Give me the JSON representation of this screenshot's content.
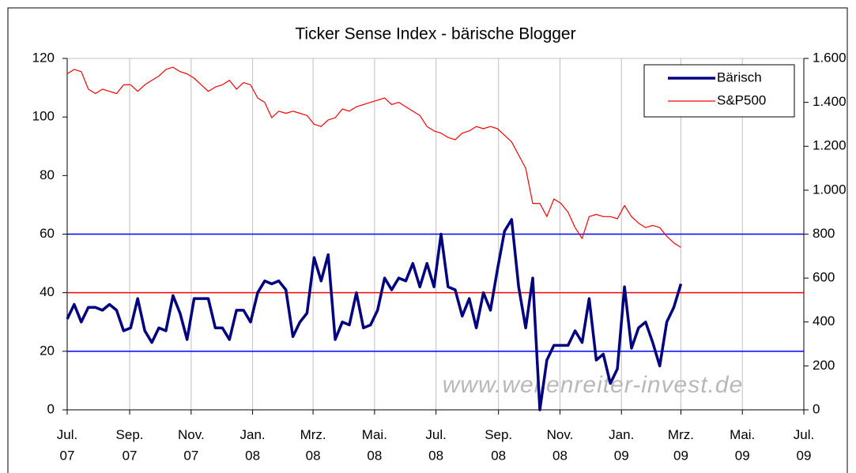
{
  "chart_data": {
    "type": "line",
    "title": "Ticker Sense Index - bärische Blogger",
    "watermark": "www.wellenreiter-invest.de",
    "x": [
      0,
      7,
      14,
      21,
      28,
      35,
      42,
      49,
      56,
      63,
      70,
      77,
      84,
      91,
      98,
      105,
      112,
      119,
      126,
      133,
      140,
      147,
      154,
      161,
      168,
      175,
      182,
      189,
      196,
      203,
      210,
      217,
      224,
      231,
      238,
      245,
      252,
      259,
      266,
      273,
      280,
      287,
      294,
      301,
      308,
      315,
      322,
      329,
      336,
      343,
      350,
      357,
      364,
      371,
      378,
      385,
      392,
      399,
      406,
      413,
      420,
      427,
      434,
      441,
      448,
      455,
      462,
      469,
      476,
      483,
      490,
      497,
      504,
      511,
      518,
      525,
      532,
      539,
      546,
      553,
      560,
      567,
      574,
      581,
      588,
      595,
      602,
      609
    ],
    "xlim": [
      0,
      731
    ],
    "xticks": [
      {
        "value": 0,
        "label": "Jul. 07"
      },
      {
        "value": 62,
        "label": "Sep. 07"
      },
      {
        "value": 123,
        "label": "Nov. 07"
      },
      {
        "value": 184,
        "label": "Jan. 08"
      },
      {
        "value": 244,
        "label": "Mrz. 08"
      },
      {
        "value": 305,
        "label": "Mai. 08"
      },
      {
        "value": 366,
        "label": "Jul. 08"
      },
      {
        "value": 428,
        "label": "Sep. 08"
      },
      {
        "value": 489,
        "label": "Nov. 08"
      },
      {
        "value": 550,
        "label": "Jan. 09"
      },
      {
        "value": 609,
        "label": "Mrz. 09"
      },
      {
        "value": 670,
        "label": "Mai. 09"
      },
      {
        "value": 731,
        "label": "Jul. 09"
      }
    ],
    "ylim": [
      0,
      120
    ],
    "yticks": [
      0,
      20,
      40,
      60,
      80,
      100,
      120
    ],
    "y2lim": [
      0,
      1600
    ],
    "y2ticks": [
      0,
      200,
      400,
      600,
      800,
      1000,
      1200,
      1400,
      1600
    ],
    "y2tick_labels": [
      "0",
      "200",
      "400",
      "600",
      "800",
      "1.000",
      "1.200",
      "1.400",
      "1.600"
    ],
    "grid": true,
    "legend": "upper right",
    "reference_lines": [
      {
        "value": 20,
        "color": "#0000ff"
      },
      {
        "value": 40,
        "color": "#ff0000"
      },
      {
        "value": 60,
        "color": "#0000ff"
      }
    ],
    "series": [
      {
        "name": "Bärisch",
        "color": "#000080",
        "values": [
          31,
          36,
          30,
          35,
          35,
          34,
          36,
          34,
          27,
          28,
          38,
          27,
          23,
          28,
          27,
          39,
          33,
          24,
          38,
          38,
          38,
          28,
          28,
          24,
          34,
          34,
          30,
          40,
          44,
          43,
          44,
          41,
          25,
          30,
          33,
          52,
          44,
          53,
          24,
          30,
          29,
          40,
          28,
          29,
          34,
          45,
          41,
          45,
          44,
          50,
          42,
          50,
          42,
          60,
          42,
          41,
          32,
          38,
          28,
          40,
          34,
          48,
          61,
          65,
          42,
          28,
          45,
          0,
          17,
          22,
          22,
          22,
          27,
          23,
          38,
          17,
          19,
          9,
          14,
          42,
          21,
          28,
          30,
          23,
          15,
          30,
          35,
          43
        ]
      },
      {
        "name": "S&P500",
        "color": "#ff0000",
        "axis": "y2",
        "values": [
          1530,
          1550,
          1540,
          1460,
          1440,
          1460,
          1450,
          1440,
          1480,
          1480,
          1450,
          1480,
          1500,
          1520,
          1550,
          1560,
          1540,
          1530,
          1510,
          1480,
          1450,
          1470,
          1480,
          1500,
          1460,
          1490,
          1480,
          1420,
          1400,
          1330,
          1360,
          1350,
          1360,
          1350,
          1340,
          1300,
          1290,
          1320,
          1330,
          1370,
          1360,
          1380,
          1390,
          1400,
          1410,
          1420,
          1390,
          1400,
          1380,
          1360,
          1340,
          1290,
          1270,
          1260,
          1240,
          1230,
          1260,
          1270,
          1290,
          1280,
          1290,
          1280,
          1250,
          1220,
          1160,
          1100,
          940,
          940,
          880,
          960,
          940,
          900,
          830,
          780,
          880,
          890,
          880,
          880,
          870,
          930,
          880,
          850,
          830,
          840,
          830,
          790,
          760,
          740
        ]
      }
    ]
  }
}
